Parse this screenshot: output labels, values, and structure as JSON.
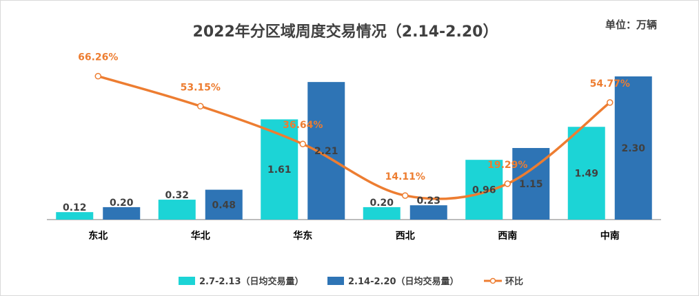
{
  "chart_data": {
    "type": "bar",
    "title": "2022年分区域周度交易情况（2.14-2.20）",
    "unit_label": "单位：万辆",
    "categories": [
      "东北",
      "华北",
      "华东",
      "西北",
      "西南",
      "中南"
    ],
    "series": [
      {
        "name": "2.7-2.13（日均交易量）",
        "values": [
          0.12,
          0.32,
          1.61,
          0.2,
          0.96,
          1.49
        ],
        "color": "#1CD4D6",
        "labels": [
          "0.12",
          "0.32",
          "1.61",
          "0.20",
          "0.96",
          "1.49"
        ]
      },
      {
        "name": "2.14-2.20（日均交易量）",
        "values": [
          0.2,
          0.48,
          2.21,
          0.23,
          1.15,
          2.3
        ],
        "color": "#2E74B5",
        "labels": [
          "0.20",
          "0.48",
          "2.21",
          "0.23",
          "1.15",
          "2.30"
        ]
      }
    ],
    "line_series": {
      "name": "环比",
      "values": [
        66.26,
        53.15,
        36.64,
        14.11,
        19.29,
        54.77
      ],
      "labels": [
        "66.26%",
        "53.15%",
        "36.64%",
        "14.11%",
        "19.29%",
        "54.77%"
      ],
      "color": "#ED7D31"
    },
    "ylim": [
      0,
      2.3
    ],
    "line_ylim": [
      0,
      80
    ],
    "legend_position": "bottom"
  }
}
